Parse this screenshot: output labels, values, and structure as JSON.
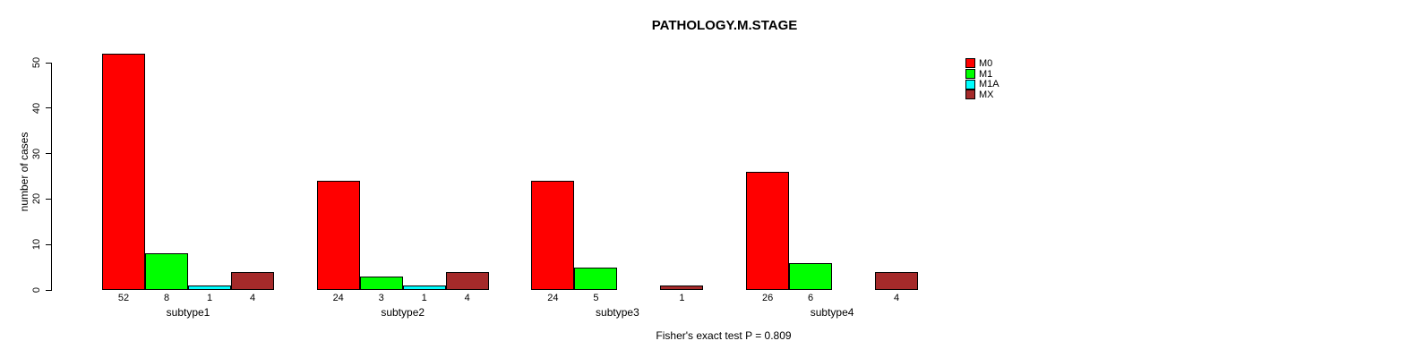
{
  "chart_data": {
    "type": "bar",
    "title": "PATHOLOGY.M.STAGE",
    "xlabel": "",
    "ylabel": "number of cases",
    "ylim": [
      0,
      50
    ],
    "yticks": [
      0,
      10,
      20,
      30,
      40,
      50
    ],
    "grid": false,
    "legend_position": "top-right",
    "categories": [
      "subtype1",
      "subtype2",
      "subtype3",
      "subtype4"
    ],
    "series": [
      {
        "name": "M0",
        "color": "#FF0000",
        "values": [
          52,
          24,
          24,
          26
        ]
      },
      {
        "name": "M1",
        "color": "#00FF00",
        "values": [
          8,
          3,
          5,
          6
        ]
      },
      {
        "name": "M1A",
        "color": "#00FFFF",
        "values": [
          1,
          1,
          0,
          0
        ]
      },
      {
        "name": "MX",
        "color": "#A52A2A",
        "values": [
          4,
          4,
          1,
          4
        ]
      }
    ],
    "bar_value_labels_shown": true,
    "annotation": "Fisher's exact test P = 0.809"
  }
}
